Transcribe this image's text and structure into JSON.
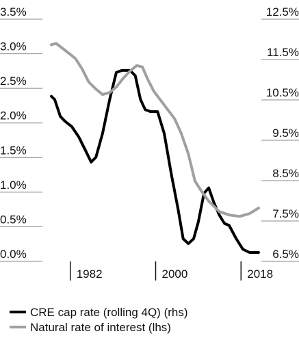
{
  "chart_data": {
    "type": "line",
    "series": [
      {
        "name": "CRE cap rate (rolling 4Q) (rhs)",
        "color": "#000000",
        "axis": "y2",
        "x": [
          1978.0,
          1978.7,
          1979.9,
          1980.9,
          1982.3,
          1983.8,
          1985.2,
          1986.4,
          1987.4,
          1988.8,
          1990.3,
          1991.7,
          1992.9,
          1994.6,
          1995.7,
          1996.8,
          1997.8,
          1998.9,
          2000.4,
          2001.8,
          2003.3,
          2004.7,
          2005.8,
          2006.9,
          2008.0,
          2009.0,
          2010.2,
          2011.2,
          2012.2,
          2013.4,
          2014.5,
          2015.5,
          2017.0,
          2018.4,
          2019.8,
          2021.7
        ],
        "values": [
          10.59,
          10.51,
          10.09,
          9.97,
          9.84,
          9.58,
          9.25,
          8.96,
          9.08,
          9.67,
          10.51,
          11.18,
          11.23,
          11.23,
          11.1,
          10.51,
          10.26,
          10.21,
          10.21,
          9.67,
          8.66,
          7.81,
          7.06,
          6.94,
          7.06,
          7.48,
          8.19,
          8.32,
          7.98,
          7.65,
          7.44,
          7.39,
          7.06,
          6.8,
          6.72,
          6.72
        ]
      },
      {
        "name": "Natural rate of interest (lhs)",
        "color": "#a0a0a0",
        "axis": "y",
        "x": [
          1978.0,
          1979.0,
          1980.9,
          1983.1,
          1984.5,
          1985.9,
          1987.4,
          1988.8,
          1990.3,
          1991.7,
          1993.2,
          1994.6,
          1996.0,
          1997.2,
          1998.2,
          1999.6,
          2001.8,
          2004.0,
          2005.4,
          2006.9,
          2008.3,
          2009.7,
          2011.2,
          2013.4,
          2015.5,
          2017.7,
          2019.8,
          2021.7
        ],
        "values": [
          3.13,
          3.15,
          3.05,
          2.93,
          2.78,
          2.59,
          2.49,
          2.41,
          2.44,
          2.52,
          2.65,
          2.75,
          2.83,
          2.81,
          2.65,
          2.46,
          2.26,
          2.06,
          1.85,
          1.55,
          1.16,
          1.01,
          0.87,
          0.72,
          0.67,
          0.65,
          0.69,
          0.77
        ]
      }
    ],
    "xlim": [
      1978,
      2022
    ],
    "xticks": [
      1982,
      2000,
      2018
    ],
    "ylim": [
      0,
      3.5
    ],
    "yticks": [
      {
        "value": 0,
        "label": "0.0%"
      },
      {
        "value": 0.5,
        "label": "0.5%"
      },
      {
        "value": 1,
        "label": "1.0%"
      },
      {
        "value": 1.5,
        "label": "1.5%"
      },
      {
        "value": 2,
        "label": "2.0%"
      },
      {
        "value": 2.5,
        "label": "2.5%"
      },
      {
        "value": 3,
        "label": "3.0%"
      },
      {
        "value": 3.5,
        "label": "3.5%"
      }
    ],
    "y2lim": [
      6.5,
      12.5
    ],
    "y2ticks": [
      {
        "value": 6.5,
        "label": "6.5%"
      },
      {
        "value": 7.5,
        "label": "7.5%"
      },
      {
        "value": 8.5,
        "label": "8.5%"
      },
      {
        "value": 9.5,
        "label": "9.5%"
      },
      {
        "value": 10.5,
        "label": "10.5%"
      },
      {
        "value": 11.5,
        "label": "11.5%"
      },
      {
        "value": 12.5,
        "label": "12.5%"
      }
    ],
    "legend": "bottom"
  }
}
